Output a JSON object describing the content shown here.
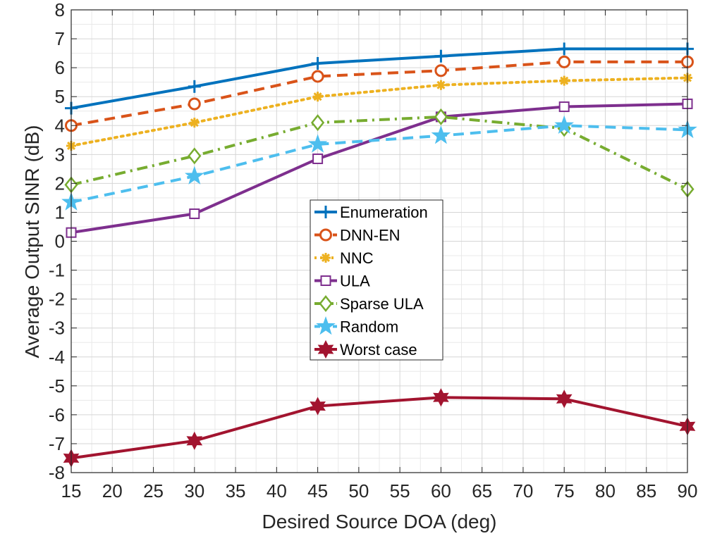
{
  "chart_data": {
    "type": "line",
    "xlabel": "Desired Source DOA (deg)",
    "ylabel": "Average Output SINR (dB)",
    "xlim": [
      15,
      90
    ],
    "ylim": [
      -8,
      8
    ],
    "xticks": [
      15,
      20,
      25,
      30,
      35,
      40,
      45,
      50,
      55,
      60,
      65,
      70,
      75,
      80,
      85,
      90
    ],
    "yticks": [
      -8,
      -7,
      -6,
      -5,
      -4,
      -3,
      -2,
      -1,
      0,
      1,
      2,
      3,
      4,
      5,
      6,
      7,
      8
    ],
    "grid": true,
    "legend_position": "center",
    "x": [
      15,
      30,
      45,
      60,
      75,
      90
    ],
    "series": [
      {
        "name": "Enumeration",
        "values": [
          4.6,
          5.35,
          6.15,
          6.4,
          6.65,
          6.65
        ],
        "color": "#0072BD",
        "dash": "solid",
        "marker": "plus"
      },
      {
        "name": "DNN-EN",
        "values": [
          4.0,
          4.75,
          5.7,
          5.9,
          6.2,
          6.2
        ],
        "color": "#D95319",
        "dash": "dashed",
        "marker": "circle"
      },
      {
        "name": "NNC",
        "values": [
          3.3,
          4.1,
          5.0,
          5.4,
          5.55,
          5.65
        ],
        "color": "#EDB120",
        "dash": "dotted",
        "marker": "asterisk"
      },
      {
        "name": "ULA",
        "values": [
          0.3,
          0.95,
          2.85,
          4.3,
          4.65,
          4.75
        ],
        "color": "#7E2F8E",
        "dash": "solid",
        "marker": "square"
      },
      {
        "name": "Sparse ULA",
        "values": [
          1.95,
          2.95,
          4.1,
          4.3,
          3.9,
          1.8
        ],
        "color": "#77AC30",
        "dash": "dashdot",
        "marker": "diamond"
      },
      {
        "name": "Random",
        "values": [
          1.35,
          2.25,
          3.35,
          3.65,
          4.0,
          3.85
        ],
        "color": "#4DBEEE",
        "dash": "dashed",
        "marker": "pentagram"
      },
      {
        "name": "Worst case",
        "values": [
          -7.5,
          -6.9,
          -5.7,
          -5.4,
          -5.45,
          -6.4
        ],
        "color": "#A2142F",
        "dash": "solid",
        "marker": "hexagram"
      }
    ]
  }
}
